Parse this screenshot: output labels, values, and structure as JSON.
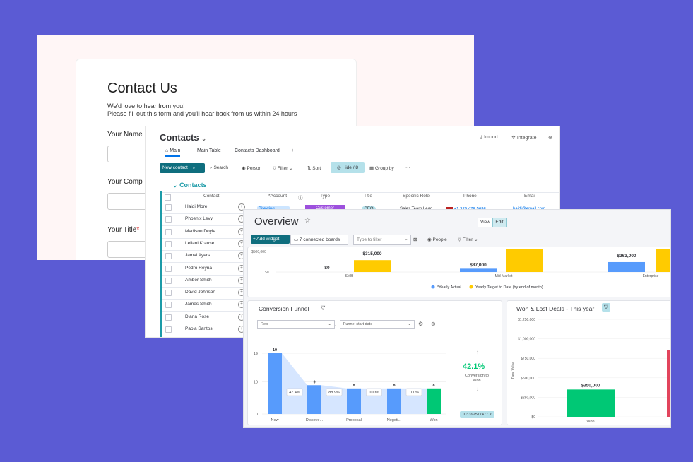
{
  "form": {
    "title": "Contact Us",
    "subtitle1": "We'd love to hear from you!",
    "subtitle2": "Please fill out this form and you'll hear back from us within 24 hours",
    "field_name": "Your Name",
    "field_company": "Your Comp",
    "field_title": "Your Title",
    "required": "*"
  },
  "contacts": {
    "title": "Contacts",
    "import": "Import",
    "integrate": "Integrate",
    "tabs": [
      "Main",
      "Main Table",
      "Contacts Dashboard",
      "+"
    ],
    "new_contact": "New contact",
    "toolbar": [
      "Search",
      "Person",
      "Filter",
      "Sort",
      "Hide / 8",
      "Group by",
      "···"
    ],
    "group": "Contacts",
    "columns": [
      "Contact",
      "*Account",
      "Type",
      "Title",
      "Specific Role",
      "Phone",
      "Email"
    ],
    "rows": [
      "Haidi More",
      "Phoenix Levy",
      "Madison Doyle",
      "Leilani Krause",
      "Jamal Ayers",
      "Pedro Reyna",
      "Amber Smith",
      "David Johnson",
      "James Smith",
      "Diana Rose",
      "Paola Santos"
    ],
    "first_row": {
      "account": "Bitewing",
      "type": "Customer",
      "title": "CEO",
      "role": "Sales Team Lead",
      "phone": "+1 325 478 5698",
      "email": "haidi@email.com"
    }
  },
  "overview": {
    "title": "Overview",
    "view": "View",
    "edit": "Edit",
    "add_widget": "Add widget",
    "boards": "7 connected boards",
    "filter_placeholder": "Type to filter",
    "people": "People",
    "filter": "Filter"
  },
  "chart_data": [
    {
      "type": "bar",
      "categories": [
        "SMB",
        "Mid Market",
        "Enterprise"
      ],
      "series": [
        {
          "name": "*Yearly Actual",
          "values": [
            0,
            87000,
            263000
          ]
        },
        {
          "name": "Yearly Target to Date (by end of month)",
          "values": [
            315000,
            600000,
            600000
          ]
        }
      ],
      "ytick_labels": [
        "$500,000",
        "$0"
      ],
      "data_labels": [
        "$0",
        "$315,000",
        "$87,000",
        "$263,000"
      ],
      "legend": "bottom",
      "colors": [
        "#579bfc",
        "#ffcb00"
      ]
    },
    {
      "type": "bar",
      "title": "Conversion Funnel",
      "categories": [
        "New",
        "Discove...",
        "Proposal",
        "Negoti...",
        "Won"
      ],
      "values": [
        19,
        9,
        8,
        8,
        8
      ],
      "ytick_labels": [
        "19",
        "10",
        "0"
      ],
      "conversion_rates": [
        "47.4%",
        "88.9%",
        "100%",
        "100%"
      ],
      "summary_value": "42.1%",
      "summary_label_1": "Conversion to",
      "summary_label_2": "Won",
      "dropdown_1": "Rep",
      "dropdown_2": "Funnel start date",
      "filter_chip": "ID: 392577477",
      "colors": [
        "#579bfc",
        "#00c875"
      ]
    },
    {
      "type": "bar",
      "title": "Won & Lost Deals - This year",
      "ylabel": "Deal Value",
      "categories": [
        "Won"
      ],
      "values": [
        350000
      ],
      "data_labels": [
        "$350,000"
      ],
      "ytick_labels": [
        "$1,250,000",
        "$1,000,000",
        "$750,000",
        "$500,000",
        "$250,000",
        "$0"
      ],
      "colors": [
        "#00c875",
        "#e2445c"
      ]
    }
  ]
}
